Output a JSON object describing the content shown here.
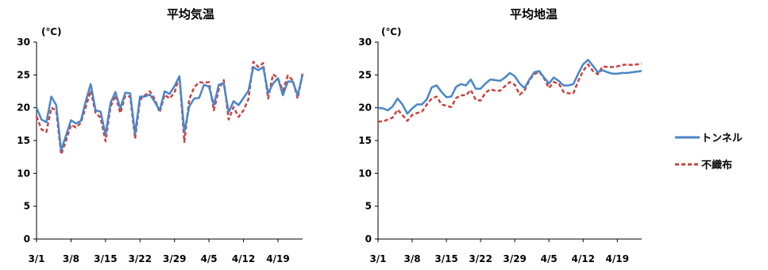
{
  "chart_data": [
    {
      "type": "line",
      "title": "平均気温",
      "unit_label": "(℃)",
      "ylim": [
        0,
        30
      ],
      "yticks": [
        "0",
        "5",
        "10",
        "15",
        "20",
        "25",
        "30"
      ],
      "x_start": "3/1",
      "x_end": "4/25",
      "xticks": [
        "3/1",
        "3/8",
        "3/15",
        "3/22",
        "3/29",
        "4/5",
        "4/12",
        "4/19"
      ],
      "grid": false,
      "series": [
        {
          "name": "トンネル",
          "color": "#4a86c8",
          "dash": "solid",
          "values": [
            20.0,
            18.2,
            17.8,
            21.7,
            20.4,
            13.5,
            15.8,
            18.1,
            17.6,
            18.0,
            21.0,
            23.6,
            19.6,
            19.4,
            15.9,
            20.7,
            22.4,
            19.9,
            22.3,
            22.2,
            16.0,
            21.7,
            21.7,
            22.0,
            20.9,
            19.6,
            22.5,
            22.1,
            23.3,
            24.8,
            16.3,
            20.2,
            21.4,
            21.5,
            23.5,
            23.2,
            20.4,
            23.5,
            23.7,
            19.3,
            21.0,
            20.4,
            21.5,
            22.6,
            26.2,
            25.7,
            26.2,
            22.2,
            23.7,
            24.5,
            21.9,
            24.0,
            24.0,
            21.9,
            25.0
          ]
        },
        {
          "name": "不織布",
          "color": "#c9423f",
          "dash": "dashed",
          "values": [
            18.7,
            16.7,
            16.3,
            20.0,
            19.6,
            12.9,
            15.0,
            17.4,
            17.0,
            17.7,
            20.1,
            22.6,
            19.2,
            18.5,
            14.9,
            20.1,
            21.9,
            19.2,
            21.8,
            21.7,
            15.3,
            21.2,
            21.9,
            22.5,
            21.3,
            19.3,
            22.0,
            21.4,
            22.3,
            24.8,
            14.8,
            21.3,
            23.1,
            23.9,
            23.8,
            23.9,
            19.6,
            22.8,
            24.2,
            18.2,
            20.1,
            18.6,
            19.6,
            21.3,
            27.0,
            26.2,
            26.8,
            21.4,
            25.1,
            24.5,
            22.6,
            24.9,
            24.2,
            21.4,
            25.3
          ]
        }
      ]
    },
    {
      "type": "line",
      "title": "平均地温",
      "unit_label": "(℃)",
      "ylim": [
        0,
        30
      ],
      "yticks": [
        "0",
        "5",
        "10",
        "15",
        "20",
        "25",
        "30"
      ],
      "x_start": "3/1",
      "x_end": "4/25",
      "xticks": [
        "3/1",
        "3/8",
        "3/15",
        "3/22",
        "3/29",
        "4/5",
        "4/12",
        "4/19"
      ],
      "grid": false,
      "series": [
        {
          "name": "トンネル",
          "color": "#4a86c8",
          "dash": "solid",
          "values": [
            20.0,
            19.9,
            19.6,
            20.2,
            21.4,
            20.5,
            19.1,
            19.9,
            20.5,
            20.5,
            21.3,
            23.1,
            23.4,
            22.4,
            21.6,
            21.7,
            23.2,
            23.6,
            23.4,
            24.3,
            22.9,
            22.9,
            23.7,
            24.3,
            24.2,
            24.1,
            24.6,
            25.3,
            24.8,
            23.7,
            23.0,
            24.3,
            25.4,
            25.6,
            24.6,
            23.7,
            24.6,
            24.1,
            23.4,
            23.4,
            23.6,
            25.2,
            26.6,
            27.3,
            26.4,
            25.4,
            25.7,
            25.4,
            25.2,
            25.2,
            25.3,
            25.3,
            25.4,
            25.5,
            25.6
          ]
        },
        {
          "name": "不織布",
          "color": "#c9423f",
          "dash": "dashed",
          "values": [
            17.9,
            17.9,
            18.2,
            18.5,
            19.7,
            18.9,
            18.0,
            18.9,
            19.2,
            19.4,
            20.5,
            21.4,
            21.7,
            20.5,
            20.3,
            20.1,
            21.5,
            21.9,
            21.9,
            22.7,
            21.2,
            21.1,
            22.3,
            22.8,
            22.6,
            22.6,
            23.3,
            23.9,
            23.5,
            22.0,
            22.6,
            24.2,
            25.1,
            25.5,
            24.5,
            23.0,
            23.9,
            23.7,
            22.4,
            22.2,
            22.2,
            24.1,
            25.6,
            26.6,
            25.6,
            25.1,
            26.3,
            26.2,
            26.2,
            26.3,
            26.5,
            26.6,
            26.5,
            26.6,
            26.7
          ]
        }
      ]
    }
  ],
  "legend": {
    "items": [
      {
        "label": "トンネル",
        "color": "#4a86c8",
        "dash": "solid"
      },
      {
        "label": "不織布",
        "color": "#c9423f",
        "dash": "dashed"
      }
    ]
  }
}
